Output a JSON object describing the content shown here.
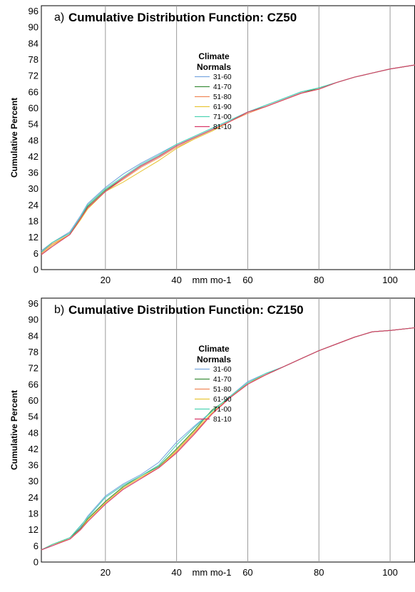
{
  "chart_data": [
    {
      "type": "line",
      "panel_label": "a)",
      "title": "Cumulative Distribution Function: CZ50",
      "xlabel": "mm mo-1",
      "ylabel": "Cumulative Percent",
      "x_ticks": [
        20,
        40,
        60,
        80,
        100
      ],
      "y_ticks": [
        0,
        6,
        12,
        18,
        24,
        30,
        36,
        42,
        48,
        54,
        60,
        66,
        72,
        78,
        84,
        90,
        96
      ],
      "xlim": [
        2,
        107
      ],
      "ylim": [
        0,
        98
      ],
      "grid": "vertical lines at x ticks",
      "legend": {
        "title": "Climate Normals",
        "placement": "upper-middle",
        "entries": [
          "31-60",
          "41-70",
          "51-80",
          "61-90",
          "71-00",
          "81-10"
        ]
      },
      "x": [
        2,
        5,
        10,
        13,
        15,
        20,
        25,
        30,
        35,
        40,
        45,
        50,
        55,
        60,
        65,
        70,
        75,
        80,
        85,
        90,
        95,
        100,
        107
      ],
      "series": [
        {
          "name": "31-60",
          "color": "#7aa8e0",
          "values": [
            7,
            10,
            14,
            20,
            24.5,
            30.5,
            35.5,
            39.5,
            43,
            46.5,
            49.5,
            52.5,
            55.5,
            58.5,
            61,
            63.5,
            66,
            67.5,
            69.5,
            71.5,
            73,
            74.5,
            76
          ]
        },
        {
          "name": "41-70",
          "color": "#3f8f3f",
          "values": [
            6.5,
            10,
            13.5,
            19,
            23.5,
            29.5,
            34,
            38.5,
            42,
            46,
            49,
            52,
            55,
            58.5,
            60.5,
            63,
            65.5,
            67.5,
            69.5,
            71.5,
            73,
            74.5,
            76
          ]
        },
        {
          "name": "51-80",
          "color": "#f08a5a",
          "values": [
            6,
            9.5,
            13,
            18.5,
            23,
            29,
            33.5,
            38,
            41.5,
            45.5,
            48.5,
            51.5,
            55,
            58,
            60.5,
            63,
            65.5,
            67,
            69.5,
            71.5,
            73,
            74.5,
            76
          ]
        },
        {
          "name": "61-90",
          "color": "#e8c63a",
          "values": [
            5.5,
            9,
            13,
            18.5,
            22.5,
            29,
            32.5,
            36.5,
            40.5,
            45,
            48.5,
            51.5,
            55,
            58.5,
            60.5,
            63,
            65.5,
            67,
            69.5,
            71.5,
            73,
            74.5,
            76
          ]
        },
        {
          "name": "71-00",
          "color": "#4fd3b3",
          "values": [
            6.5,
            10,
            13.5,
            19.5,
            24,
            30,
            34.5,
            39,
            42.5,
            46.5,
            49.5,
            52.5,
            55.5,
            58.5,
            61,
            63.5,
            66,
            67.5,
            69.5,
            71.5,
            73,
            74.5,
            76
          ]
        },
        {
          "name": "81-10",
          "color": "#d83a6a",
          "values": [
            5.5,
            8.5,
            13,
            19,
            23,
            29,
            34,
            38.5,
            42,
            46,
            49,
            52,
            55,
            58.5,
            60.5,
            63,
            65.5,
            67,
            69.5,
            71.5,
            73,
            74.5,
            76
          ]
        }
      ]
    },
    {
      "type": "line",
      "panel_label": "b)",
      "title": "Cumulative Distribution Function: CZ150",
      "xlabel": "mm mo-1",
      "ylabel": "Cumulative Percent",
      "x_ticks": [
        20,
        40,
        60,
        80,
        100
      ],
      "y_ticks": [
        0,
        6,
        12,
        18,
        24,
        30,
        36,
        42,
        48,
        54,
        60,
        66,
        72,
        78,
        84,
        90,
        96
      ],
      "xlim": [
        2,
        107
      ],
      "ylim": [
        0,
        98
      ],
      "grid": "vertical lines at x ticks",
      "legend": {
        "title": "Climate Normals",
        "placement": "upper-middle",
        "entries": [
          "31-60",
          "41-70",
          "51-80",
          "61-90",
          "71-00",
          "81-10"
        ]
      },
      "x": [
        2,
        5,
        10,
        13,
        15,
        20,
        25,
        30,
        35,
        40,
        45,
        50,
        55,
        60,
        65,
        70,
        75,
        80,
        85,
        90,
        95,
        100,
        107
      ],
      "series": [
        {
          "name": "31-60",
          "color": "#7aa8e0",
          "values": [
            4.5,
            6.5,
            9,
            13,
            17,
            24.5,
            29,
            32.5,
            37,
            44.5,
            50.5,
            56,
            61.5,
            67,
            70,
            72.5,
            75.5,
            78.5,
            81,
            83.5,
            85.5,
            86,
            87
          ]
        },
        {
          "name": "41-70",
          "color": "#3f8f3f",
          "values": [
            4.5,
            6.5,
            9,
            12.5,
            16,
            22.5,
            28,
            32,
            35.5,
            42,
            49,
            56.5,
            61,
            66.5,
            69.5,
            72.5,
            75.5,
            78.5,
            81,
            83.5,
            85.5,
            86,
            87
          ]
        },
        {
          "name": "51-80",
          "color": "#f08a5a",
          "values": [
            4.5,
            6.5,
            8.5,
            12,
            15.5,
            22,
            27.5,
            31.5,
            35,
            41,
            48,
            55,
            61,
            66,
            69.5,
            72.5,
            75.5,
            78.5,
            81,
            83.5,
            85.5,
            86,
            87
          ]
        },
        {
          "name": "61-90",
          "color": "#e8c63a",
          "values": [
            4.5,
            6.5,
            8.5,
            12,
            15.5,
            22,
            27.5,
            31.5,
            35,
            41.5,
            48.5,
            55.5,
            61,
            66.5,
            69.5,
            72.5,
            75.5,
            78.5,
            81,
            83.5,
            85.5,
            86,
            87
          ]
        },
        {
          "name": "71-00",
          "color": "#4fd3b3",
          "values": [
            4.5,
            6.5,
            9,
            13.5,
            16.5,
            24,
            28.5,
            32,
            36,
            43.5,
            50,
            56,
            61.5,
            66.5,
            70,
            72.5,
            75.5,
            78.5,
            81,
            83.5,
            85.5,
            86,
            87
          ]
        },
        {
          "name": "81-10",
          "color": "#d83a6a",
          "values": [
            4.5,
            6,
            8.5,
            12,
            15,
            21.5,
            27,
            31,
            35,
            40.5,
            47.5,
            55,
            61,
            66,
            69.5,
            72.5,
            75.5,
            78.5,
            81,
            83.5,
            85.5,
            86,
            87
          ]
        }
      ]
    }
  ]
}
